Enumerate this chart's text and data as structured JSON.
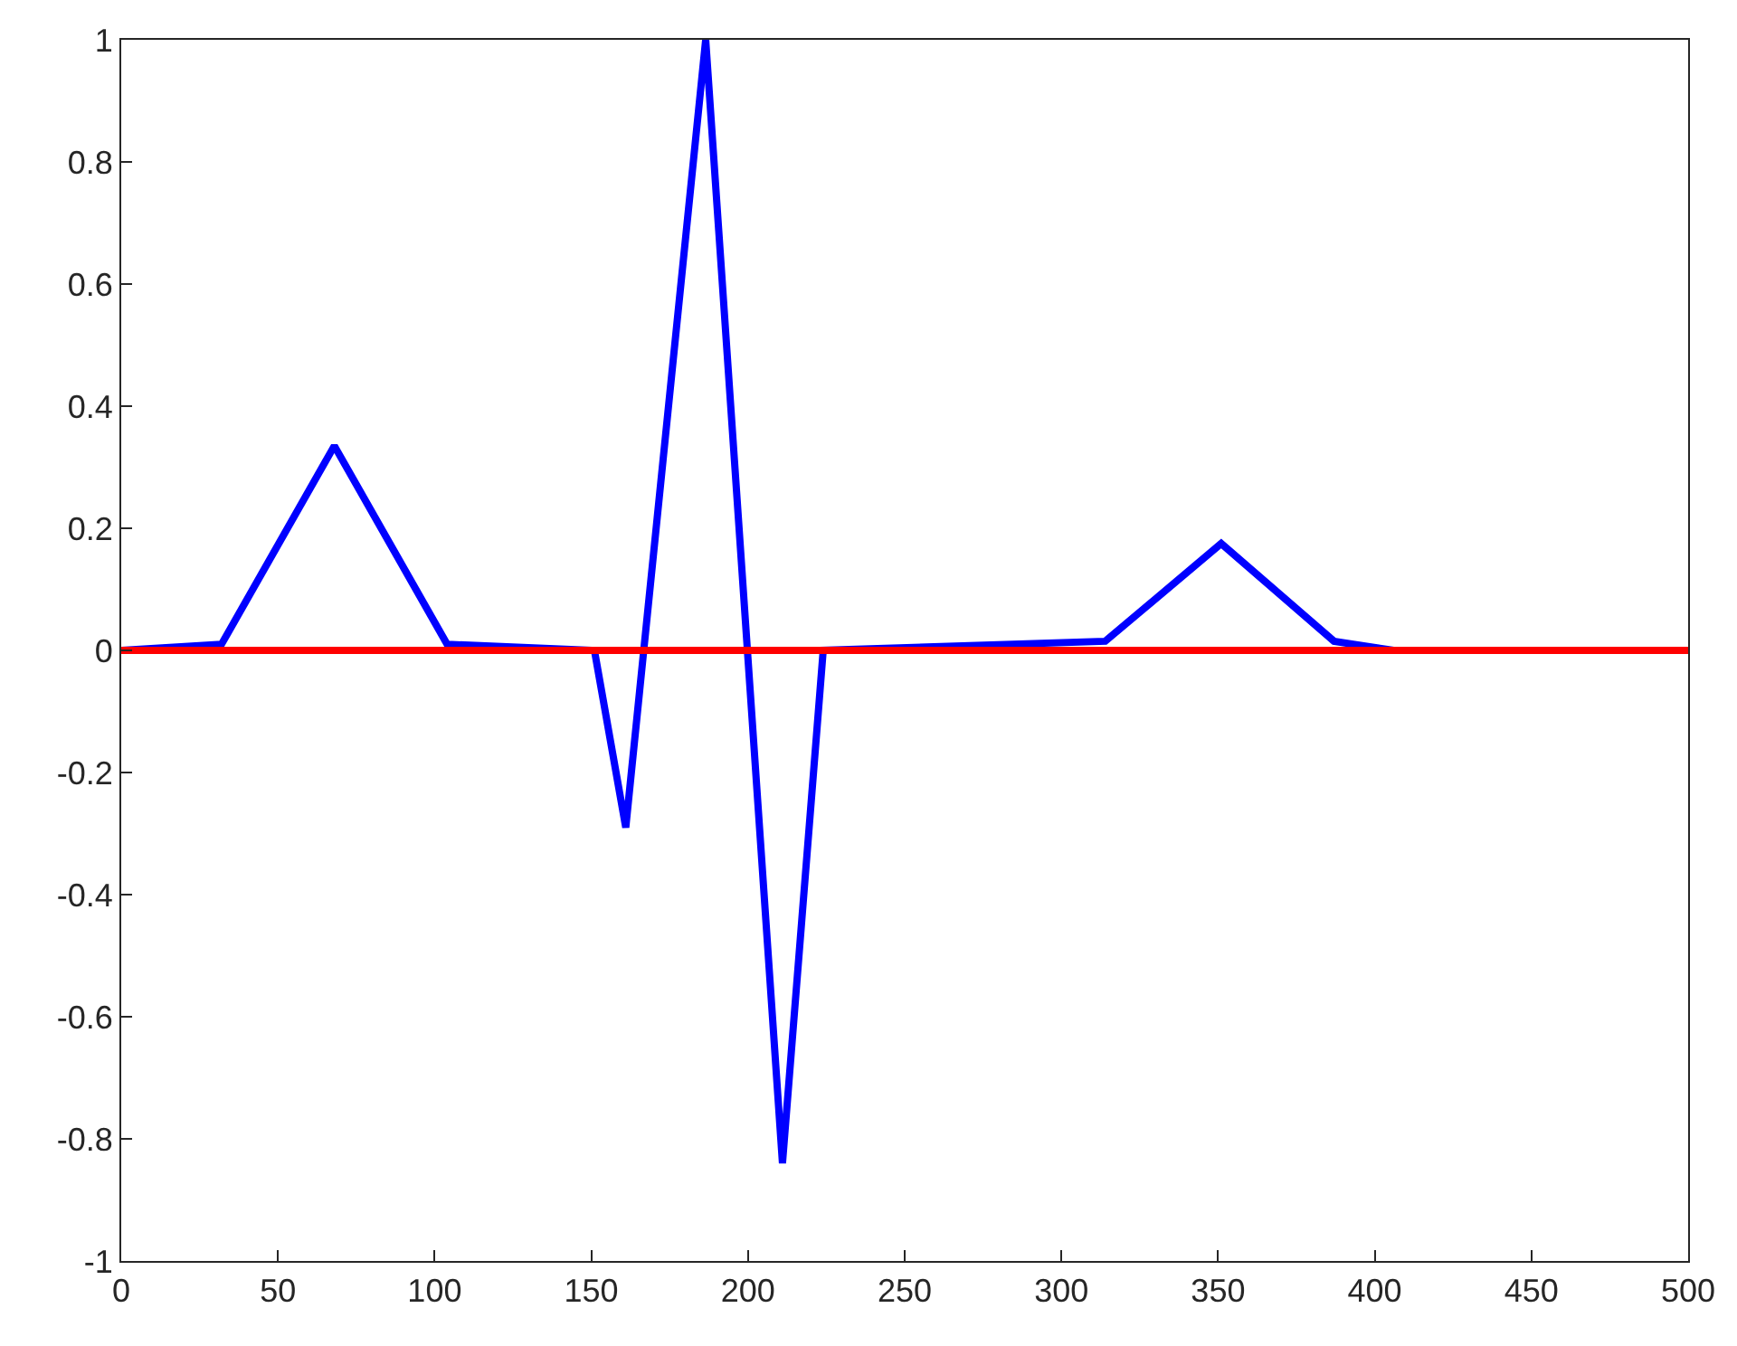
{
  "chart_data": {
    "type": "line",
    "xlim": [
      0,
      500
    ],
    "ylim": [
      -1,
      1
    ],
    "xticks": [
      0,
      50,
      100,
      150,
      200,
      250,
      300,
      350,
      400,
      450,
      500
    ],
    "yticks": [
      -1,
      -0.8,
      -0.6,
      -0.4,
      -0.2,
      0,
      0.2,
      0.4,
      0.6,
      0.8,
      1
    ],
    "grid": false,
    "marker": "none",
    "line_style": "solid",
    "series": [
      {
        "color": "#0000ff",
        "x": [
          0,
          32,
          68,
          104,
          151,
          161,
          186.5,
          211,
          224,
          314,
          351,
          387,
          406,
          500
        ],
        "values": [
          0,
          0.01,
          0.335,
          0.01,
          0,
          -0.29,
          1,
          -0.84,
          0,
          0.015,
          0.175,
          0.015,
          0,
          0
        ]
      },
      {
        "color": "#ff0000",
        "x": [
          0,
          500
        ],
        "values": [
          0,
          0
        ]
      }
    ]
  }
}
